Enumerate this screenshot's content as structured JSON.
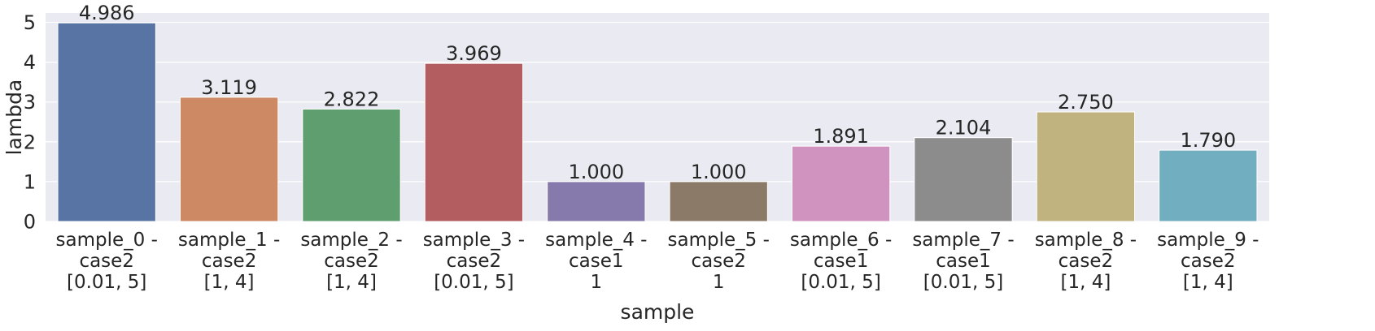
{
  "chart_data": {
    "type": "bar",
    "title": "",
    "xlabel": "sample",
    "ylabel": "lambda",
    "ylim": [
      0,
      5.235
    ],
    "yticks": [
      0,
      1,
      2,
      3,
      4,
      5
    ],
    "grid": true,
    "legend": "none",
    "background": "#EAEAF2",
    "categories": [
      [
        "sample_0 -",
        "case2",
        "[0.01, 5]"
      ],
      [
        "sample_1 -",
        "case2",
        "[1, 4]"
      ],
      [
        "sample_2 -",
        "case2",
        "[1, 4]"
      ],
      [
        "sample_3 -",
        "case2",
        "[0.01, 5]"
      ],
      [
        "sample_4 -",
        "case1",
        "1"
      ],
      [
        "sample_5 -",
        "case2",
        "1"
      ],
      [
        "sample_6 -",
        "case1",
        "[0.01, 5]"
      ],
      [
        "sample_7 -",
        "case1",
        "[0.01, 5]"
      ],
      [
        "sample_8 -",
        "case2",
        "[1, 4]"
      ],
      [
        "sample_9 -",
        "case2",
        "[1, 4]"
      ]
    ],
    "values": [
      4.986,
      3.119,
      2.822,
      3.969,
      1.0,
      1.0,
      1.891,
      2.104,
      2.75,
      1.79
    ],
    "value_labels": [
      "4.986",
      "3.119",
      "2.822",
      "3.969",
      "1.000",
      "1.000",
      "1.891",
      "2.104",
      "2.750",
      "1.790"
    ],
    "colors": [
      "#5874A5",
      "#CC8963",
      "#5F9E6E",
      "#B35D60",
      "#857AAB",
      "#8C7A68",
      "#D093BF",
      "#8C8C8C",
      "#C1B37F",
      "#71AEC0"
    ]
  }
}
